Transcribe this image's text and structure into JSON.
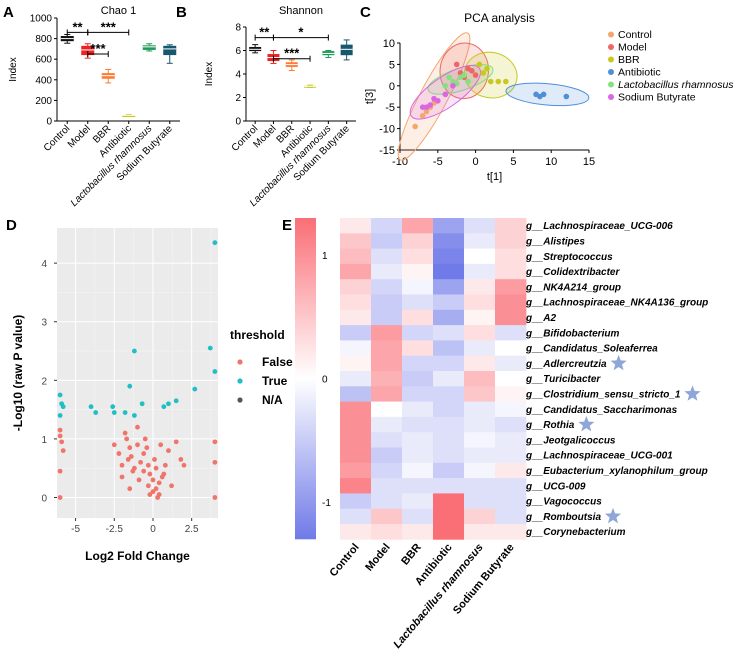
{
  "panel_labels": [
    "A",
    "B",
    "C",
    "D",
    "E"
  ],
  "groups": [
    "Control",
    "Model",
    "BBR",
    "Antibiotic",
    "Lactobacillus rhamnosus",
    "Sodium Butyrate"
  ],
  "group_colors": [
    "#111111",
    "#ee2222",
    "#ff7a33",
    "#c8c81e",
    "#1e9a5a",
    "#17586e"
  ],
  "chart_data": [
    {
      "id": "chao1",
      "type": "box",
      "title": "Chao 1",
      "ylabel": "Index",
      "ylim": [
        0,
        1000
      ],
      "yticks": [
        0,
        200,
        400,
        600,
        800,
        1000
      ],
      "categories": [
        "Control",
        "Model",
        "BBR",
        "Antibiotic",
        "Lactobacillus rhamnosus",
        "Sodium Butyrate"
      ],
      "boxes": [
        {
          "min": 755,
          "q1": 775,
          "median": 800,
          "q3": 825,
          "max": 840
        },
        {
          "min": 610,
          "q1": 640,
          "median": 690,
          "q3": 730,
          "max": 750
        },
        {
          "min": 370,
          "q1": 410,
          "median": 440,
          "q3": 465,
          "max": 500
        },
        {
          "min": 48,
          "q1": 52,
          "median": 55,
          "q3": 58,
          "max": 62
        },
        {
          "min": 680,
          "q1": 690,
          "median": 720,
          "q3": 735,
          "max": 750
        },
        {
          "min": 560,
          "q1": 640,
          "median": 700,
          "q3": 730,
          "max": 740
        }
      ],
      "significance": [
        {
          "from": 0,
          "to": 1,
          "label": "**",
          "y": 860
        },
        {
          "from": 1,
          "to": 3,
          "label": "***",
          "y": 860
        },
        {
          "from": 1,
          "to": 2,
          "label": "***",
          "y": 650
        }
      ]
    },
    {
      "id": "shannon",
      "type": "box",
      "title": "Shannon",
      "ylabel": "Index",
      "ylim": [
        0,
        8
      ],
      "yticks": [
        0,
        2,
        4,
        6,
        8
      ],
      "categories": [
        "Control",
        "Model",
        "BBR",
        "Antibiotic",
        "Lactobacillus rhamnosus",
        "Sodium Butyrate"
      ],
      "boxes": [
        {
          "min": 5.8,
          "q1": 5.95,
          "median": 6.1,
          "q3": 6.3,
          "max": 6.5
        },
        {
          "min": 4.9,
          "q1": 5.1,
          "median": 5.4,
          "q3": 5.7,
          "max": 6.0
        },
        {
          "min": 4.3,
          "q1": 4.6,
          "median": 4.8,
          "q3": 5.0,
          "max": 5.2
        },
        {
          "min": 2.85,
          "q1": 2.9,
          "median": 2.95,
          "q3": 3.0,
          "max": 3.05
        },
        {
          "min": 5.4,
          "q1": 5.6,
          "median": 5.75,
          "q3": 5.95,
          "max": 6.0
        },
        {
          "min": 5.2,
          "q1": 5.6,
          "median": 6.1,
          "q3": 6.5,
          "max": 6.9
        }
      ],
      "significance": [
        {
          "from": 0,
          "to": 1,
          "label": "**",
          "y": 7.1
        },
        {
          "from": 1,
          "to": 4,
          "label": "*",
          "y": 7.1
        },
        {
          "from": 1,
          "to": 3,
          "label": "***",
          "y": 5.3
        }
      ]
    },
    {
      "id": "pca",
      "type": "scatter",
      "title": "PCA analysis",
      "xlabel": "t[1]",
      "ylabel": "t[3]",
      "xlim": [
        -10,
        15
      ],
      "ylim": [
        -15,
        10
      ],
      "xticks": [
        -10,
        -5,
        0,
        5,
        10,
        15
      ],
      "yticks": [
        -15,
        -10,
        -5,
        0,
        5,
        10
      ],
      "legend": [
        "Control",
        "Model",
        "BBR",
        "Antibiotic",
        "Lactobacillus rhamnosus",
        "Sodium Butyrate"
      ],
      "series": [
        {
          "name": "Control",
          "color": "#f5a66e",
          "ellipse": {
            "cx": -5.5,
            "cy": -2.5,
            "rx": 9.5,
            "ry": 3.2,
            "angle": 62
          },
          "x": [
            -8,
            -7,
            -6,
            -5,
            -4,
            -6.5,
            -5.5
          ],
          "y": [
            -9.5,
            -7,
            -5,
            -3.5,
            -2,
            -6,
            -4
          ]
        },
        {
          "name": "Model",
          "color": "#ee6666",
          "ellipse": {
            "cx": -1.5,
            "cy": 3.5,
            "rx": 3.2,
            "ry": 6.5,
            "angle": -5
          },
          "x": [
            -2,
            -1,
            -1.5,
            -0.5,
            -2.5,
            0
          ],
          "y": [
            3,
            4,
            2,
            3.5,
            5,
            2.5
          ]
        },
        {
          "name": "BBR",
          "color": "#c8c81e",
          "ellipse": {
            "cx": 2,
            "cy": 2.5,
            "rx": 3.5,
            "ry": 5.3,
            "angle": -12
          },
          "x": [
            1,
            2,
            3,
            4,
            1.5,
            0.5
          ],
          "y": [
            3,
            1,
            1,
            1,
            4,
            5
          ]
        },
        {
          "name": "Antibiotic",
          "color": "#4f8fd8",
          "ellipse": {
            "cx": 9.5,
            "cy": -2,
            "rx": 5.5,
            "ry": 2.5,
            "angle": -5
          },
          "x": [
            8,
            9,
            8.5,
            12
          ],
          "y": [
            -2,
            -2,
            -2.5,
            -2.5
          ]
        },
        {
          "name": "Lactobacillus rhamnosus",
          "color": "#86e07e",
          "ellipse": {
            "cx": -2,
            "cy": 1.5,
            "rx": 4.5,
            "ry": 2.6,
            "angle": 18
          },
          "x": [
            -4,
            -3,
            -2,
            -1,
            -3.5,
            -2.5,
            -1.5
          ],
          "y": [
            0,
            1,
            2,
            1,
            2,
            0.5,
            2.5
          ]
        },
        {
          "name": "Sodium Butyrate",
          "color": "#d968e0",
          "ellipse": {
            "cx": -4,
            "cy": -1.5,
            "rx": 5.5,
            "ry": 3.5,
            "angle": 35
          },
          "x": [
            -7,
            -6,
            -5,
            -4,
            -3,
            -6.5,
            -5.5
          ],
          "y": [
            -5,
            -4.5,
            -3.5,
            -2,
            0,
            -5,
            -3
          ]
        }
      ]
    },
    {
      "id": "volcano",
      "type": "scatter",
      "xlabel": "Log2 Fold Change",
      "ylabel": "-Log10 (raw P value)",
      "xlim": [
        -6.2,
        4.2
      ],
      "ylim": [
        -0.35,
        4.6
      ],
      "xticks": [
        -5.0,
        -2.5,
        0.0,
        2.5
      ],
      "yticks": [
        0,
        1,
        2,
        3,
        4
      ],
      "legend_title": "threshold",
      "legend": [
        "False",
        "True",
        "N/A"
      ],
      "series": [
        {
          "name": "True",
          "color": "#1fbfc4",
          "x": [
            4.0,
            3.7,
            -1.2,
            -6.0,
            -4.0,
            -3.7,
            -5.9,
            -6.0,
            -5.8,
            -2.6,
            -2.5,
            -1.8,
            -1.2,
            -0.7,
            0.7,
            1.0,
            1.5,
            -1.5,
            2.7,
            4.0
          ],
          "y": [
            4.35,
            2.55,
            2.5,
            1.75,
            1.55,
            1.45,
            1.6,
            1.4,
            1.55,
            1.55,
            1.45,
            1.45,
            1.4,
            1.6,
            1.55,
            1.6,
            1.65,
            1.9,
            1.85,
            2.15
          ]
        },
        {
          "name": "False",
          "color": "#f0746a",
          "x": [
            -6.0,
            -5.9,
            -5.8,
            -6.0,
            -6.0,
            -6.0,
            4.0,
            4.0,
            4.0,
            -2.5,
            -2.2,
            -2.0,
            -1.8,
            -1.6,
            -1.5,
            -1.3,
            -1.0,
            -0.8,
            -0.6,
            -0.5,
            -0.3,
            -0.2,
            0.0,
            0.2,
            0.4,
            0.6,
            0.8,
            1.0,
            1.5,
            2.0,
            -2.0,
            -1.7,
            -1.4,
            -1.2,
            -0.9,
            -0.6,
            -0.3,
            0.1,
            0.3,
            0.5,
            -0.2,
            0.0,
            0.2,
            0.4,
            -1.0,
            -0.4,
            1.2,
            1.8,
            -1.5,
            0.7
          ],
          "y": [
            1.15,
            0.95,
            0.8,
            0.45,
            0.0,
            1.05,
            0.95,
            0.6,
            0.0,
            0.9,
            0.75,
            0.55,
            1.1,
            0.65,
            0.85,
            0.45,
            0.9,
            0.6,
            0.75,
            1.0,
            0.55,
            0.4,
            0.1,
            0.15,
            0.05,
            0.35,
            0.55,
            0.8,
            0.95,
            0.55,
            0.35,
            1.0,
            0.7,
            0.5,
            0.3,
            0.45,
            0.2,
            0.65,
            0.0,
            0.9,
            0.05,
            0.3,
            0.5,
            0.25,
            1.2,
            0.85,
            0.2,
            0.65,
            0.15,
            0.4
          ]
        }
      ]
    },
    {
      "id": "heatmap",
      "type": "heatmap",
      "colorbar_ticks": [
        1,
        0,
        -1
      ],
      "columns": [
        "Control",
        "Model",
        "BBR",
        "Antibiotic",
        "Lactobacillus rhamnosus",
        "Sodium Butyrate"
      ],
      "rows": [
        "g__Lachnospiraceae_UCG-006",
        "g__Alistipes",
        "g__Streptococcus",
        "g__Colidextribacter",
        "g__NK4A214_group",
        "g__Lachnospiraceae_NK4A136_group",
        "g__A2",
        "g__Bifidobacterium",
        "g__Candidatus_Soleaferrea",
        "g__Adlercreutzia",
        "g__Turicibacter",
        "g__Clostridium_sensu_stricto_1",
        "g__Candidatus_Saccharimonas",
        "g__Rothia",
        "g__Jeotgalicoccus",
        "g__Lachnospiraceae_UCG-001",
        "g__Eubacterium_xylanophilum_group",
        "g__UCG-009",
        "g__Vagococcus",
        "g__Romboutsia",
        "g__Corynebacterium"
      ],
      "starred_rows": [
        "g__Adlercreutzia",
        "g__Clostridium_sensu_stricto_1",
        "g__Rothia",
        "g__Romboutsia"
      ],
      "values": [
        [
          0.2,
          -0.4,
          0.8,
          -0.9,
          -0.3,
          0.4
        ],
        [
          0.5,
          -0.5,
          0.4,
          -1.1,
          -0.2,
          0.4
        ],
        [
          0.6,
          -0.3,
          0.3,
          -1.2,
          0.0,
          0.3
        ],
        [
          0.8,
          -0.2,
          0.1,
          -1.4,
          -0.2,
          0.3
        ],
        [
          0.4,
          -0.4,
          -0.1,
          -0.9,
          0.2,
          0.9
        ],
        [
          0.3,
          -0.5,
          -0.3,
          -0.5,
          0.3,
          1.0
        ],
        [
          0.2,
          -0.5,
          0.3,
          -0.8,
          0.1,
          1.0
        ],
        [
          -0.5,
          0.9,
          -0.4,
          -0.3,
          0.3,
          -0.3
        ],
        [
          -0.1,
          0.8,
          0.3,
          -0.6,
          -0.2,
          0.0
        ],
        [
          0.1,
          0.8,
          -0.4,
          -0.4,
          0.2,
          -0.2
        ],
        [
          -0.2,
          0.7,
          -0.5,
          -0.2,
          0.6,
          0.0
        ],
        [
          -0.6,
          0.8,
          -0.4,
          -0.4,
          0.5,
          0.1
        ],
        [
          1.0,
          0.0,
          -0.2,
          -0.4,
          -0.2,
          -0.1
        ],
        [
          1.0,
          -0.2,
          -0.3,
          -0.3,
          -0.2,
          -0.3
        ],
        [
          1.0,
          -0.3,
          -0.2,
          -0.3,
          -0.1,
          -0.2
        ],
        [
          1.0,
          -0.5,
          -0.2,
          -0.3,
          -0.2,
          -0.2
        ],
        [
          0.9,
          -0.4,
          -0.1,
          -0.5,
          -0.1,
          0.2
        ],
        [
          1.1,
          -0.3,
          -0.3,
          -0.3,
          -0.3,
          -0.3
        ],
        [
          -0.5,
          -0.3,
          -0.2,
          1.3,
          -0.3,
          -0.3
        ],
        [
          -0.3,
          0.5,
          -0.3,
          1.3,
          0.4,
          -0.3
        ],
        [
          0.2,
          0.3,
          0.2,
          1.3,
          0.2,
          0.2
        ]
      ]
    }
  ]
}
